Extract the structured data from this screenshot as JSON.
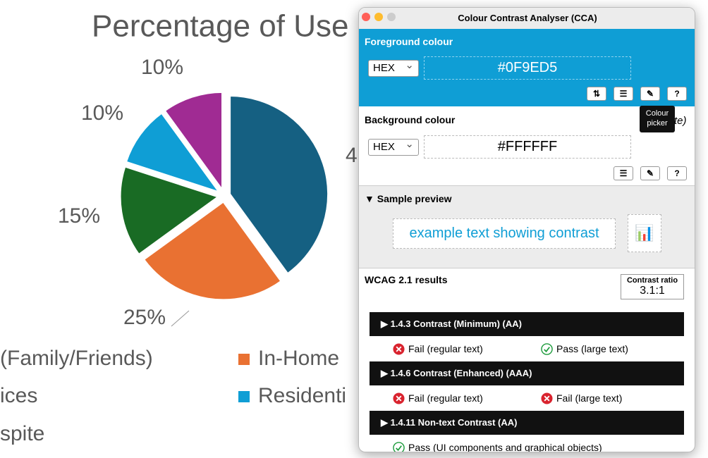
{
  "chart": {
    "type": "pie",
    "title": "Percentage of Use",
    "values": [
      40,
      25,
      15,
      10,
      10
    ],
    "colors": [
      "#156082",
      "#E97132",
      "#196B24",
      "#0F9ED5",
      "#A02B93"
    ],
    "value_labels": [
      null,
      "25%",
      "15%",
      "10%",
      "10%"
    ],
    "occluded_label": "4",
    "legend": [
      {
        "text": "(Family/Friends)"
      },
      {
        "text": "ices"
      },
      {
        "text": "spite"
      },
      {
        "text": "In-Home",
        "color": "#E97132"
      },
      {
        "text": "Residenti",
        "color": "#0F9ED5"
      }
    ]
  },
  "window": {
    "title": "Colour Contrast Analyser (CCA)",
    "foreground": {
      "heading": "Foreground colour",
      "format": "HEX",
      "value": "#0F9ED5"
    },
    "tooltip": [
      "Colour",
      "picker"
    ],
    "background": {
      "heading": "Background colour",
      "occluded_text": "te)",
      "format": "HEX",
      "value": "#FFFFFF"
    },
    "sample": {
      "heading": "▼ Sample preview",
      "text": "example text showing contrast"
    },
    "results": {
      "heading": "WCAG 2.1 results",
      "ratio_label": "Contrast ratio",
      "ratio": "3.1:1",
      "criteria": [
        {
          "name": "▶ 1.4.3 Contrast (Minimum) (AA)",
          "outcomes": [
            {
              "status": "fail",
              "text": "Fail (regular text)"
            },
            {
              "status": "pass",
              "text": "Pass (large text)"
            }
          ]
        },
        {
          "name": "▶ 1.4.6 Contrast (Enhanced) (AAA)",
          "outcomes": [
            {
              "status": "fail",
              "text": "Fail (regular text)"
            },
            {
              "status": "fail",
              "text": "Fail (large text)"
            }
          ]
        },
        {
          "name": "▶ 1.4.11 Non-text Contrast (AA)",
          "outcomes": [
            {
              "status": "pass",
              "text": "Pass (UI components and graphical objects)"
            }
          ]
        }
      ]
    }
  }
}
